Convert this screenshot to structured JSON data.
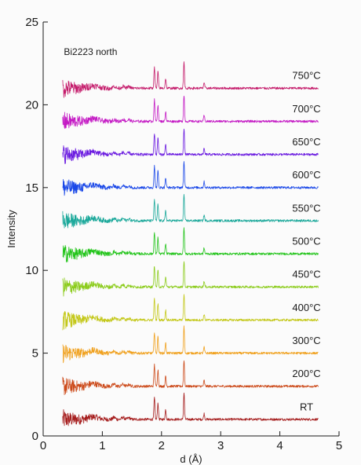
{
  "chart_data": {
    "type": "line",
    "xlabel": "d (Å)",
    "ylabel": "Intensity",
    "annotation": "Bi2223 north",
    "xlim": [
      0,
      5
    ],
    "ylim": [
      0,
      25
    ],
    "xticks": [
      0,
      1,
      2,
      3,
      4,
      5
    ],
    "yticks": [
      0,
      5,
      10,
      15,
      20,
      25
    ],
    "grid": false,
    "legend": "inline-right",
    "x_range": [
      0.33,
      4.65
    ],
    "peaks": [
      {
        "d": 1.88,
        "height": 1.3
      },
      {
        "d": 1.94,
        "height": 1.0
      },
      {
        "d": 2.07,
        "height": 0.6
      },
      {
        "d": 2.38,
        "height": 1.6
      },
      {
        "d": 2.72,
        "height": 0.35
      }
    ],
    "series": [
      {
        "name": "RT",
        "offset": 1.0,
        "color": "#a51c1c"
      },
      {
        "name": "200°C",
        "offset": 3.0,
        "color": "#cc4a1a"
      },
      {
        "name": "300°C",
        "offset": 5.0,
        "color": "#f0a01c"
      },
      {
        "name": "400°C",
        "offset": 7.0,
        "color": "#c4c81a"
      },
      {
        "name": "450°C",
        "offset": 9.0,
        "color": "#8ccc1c"
      },
      {
        "name": "500°C",
        "offset": 11.0,
        "color": "#22c41a"
      },
      {
        "name": "550°C",
        "offset": 13.0,
        "color": "#1aa89a"
      },
      {
        "name": "600°C",
        "offset": 15.0,
        "color": "#1a48e8"
      },
      {
        "name": "650°C",
        "offset": 17.0,
        "color": "#6a1ae0"
      },
      {
        "name": "700°C",
        "offset": 19.0,
        "color": "#c41ac4"
      },
      {
        "name": "750°C",
        "offset": 21.0,
        "color": "#c41a6a"
      }
    ]
  }
}
